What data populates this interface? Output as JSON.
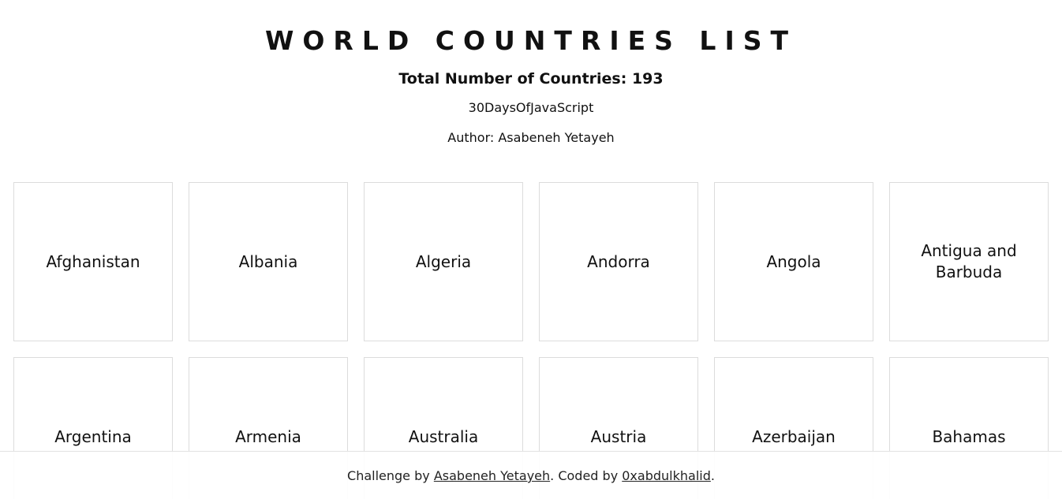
{
  "header": {
    "title": "WORLD COUNTRIES LIST",
    "total": "Total Number of Countries: 193",
    "subtitle": "30DaysOfJavaScript",
    "author": "Author: Asabeneh Yetayeh"
  },
  "countries": [
    "Afghanistan",
    "Albania",
    "Algeria",
    "Andorra",
    "Angola",
    "Antigua and Barbuda",
    "Argentina",
    "Armenia",
    "Australia",
    "Austria",
    "Azerbaijan",
    "Bahamas"
  ],
  "footer": {
    "prefix": "Challenge by ",
    "challenge_link": "Asabeneh Yetayeh",
    "middle": ". Coded by ",
    "coder_link": "0xabdulkhalid",
    "suffix": "."
  }
}
